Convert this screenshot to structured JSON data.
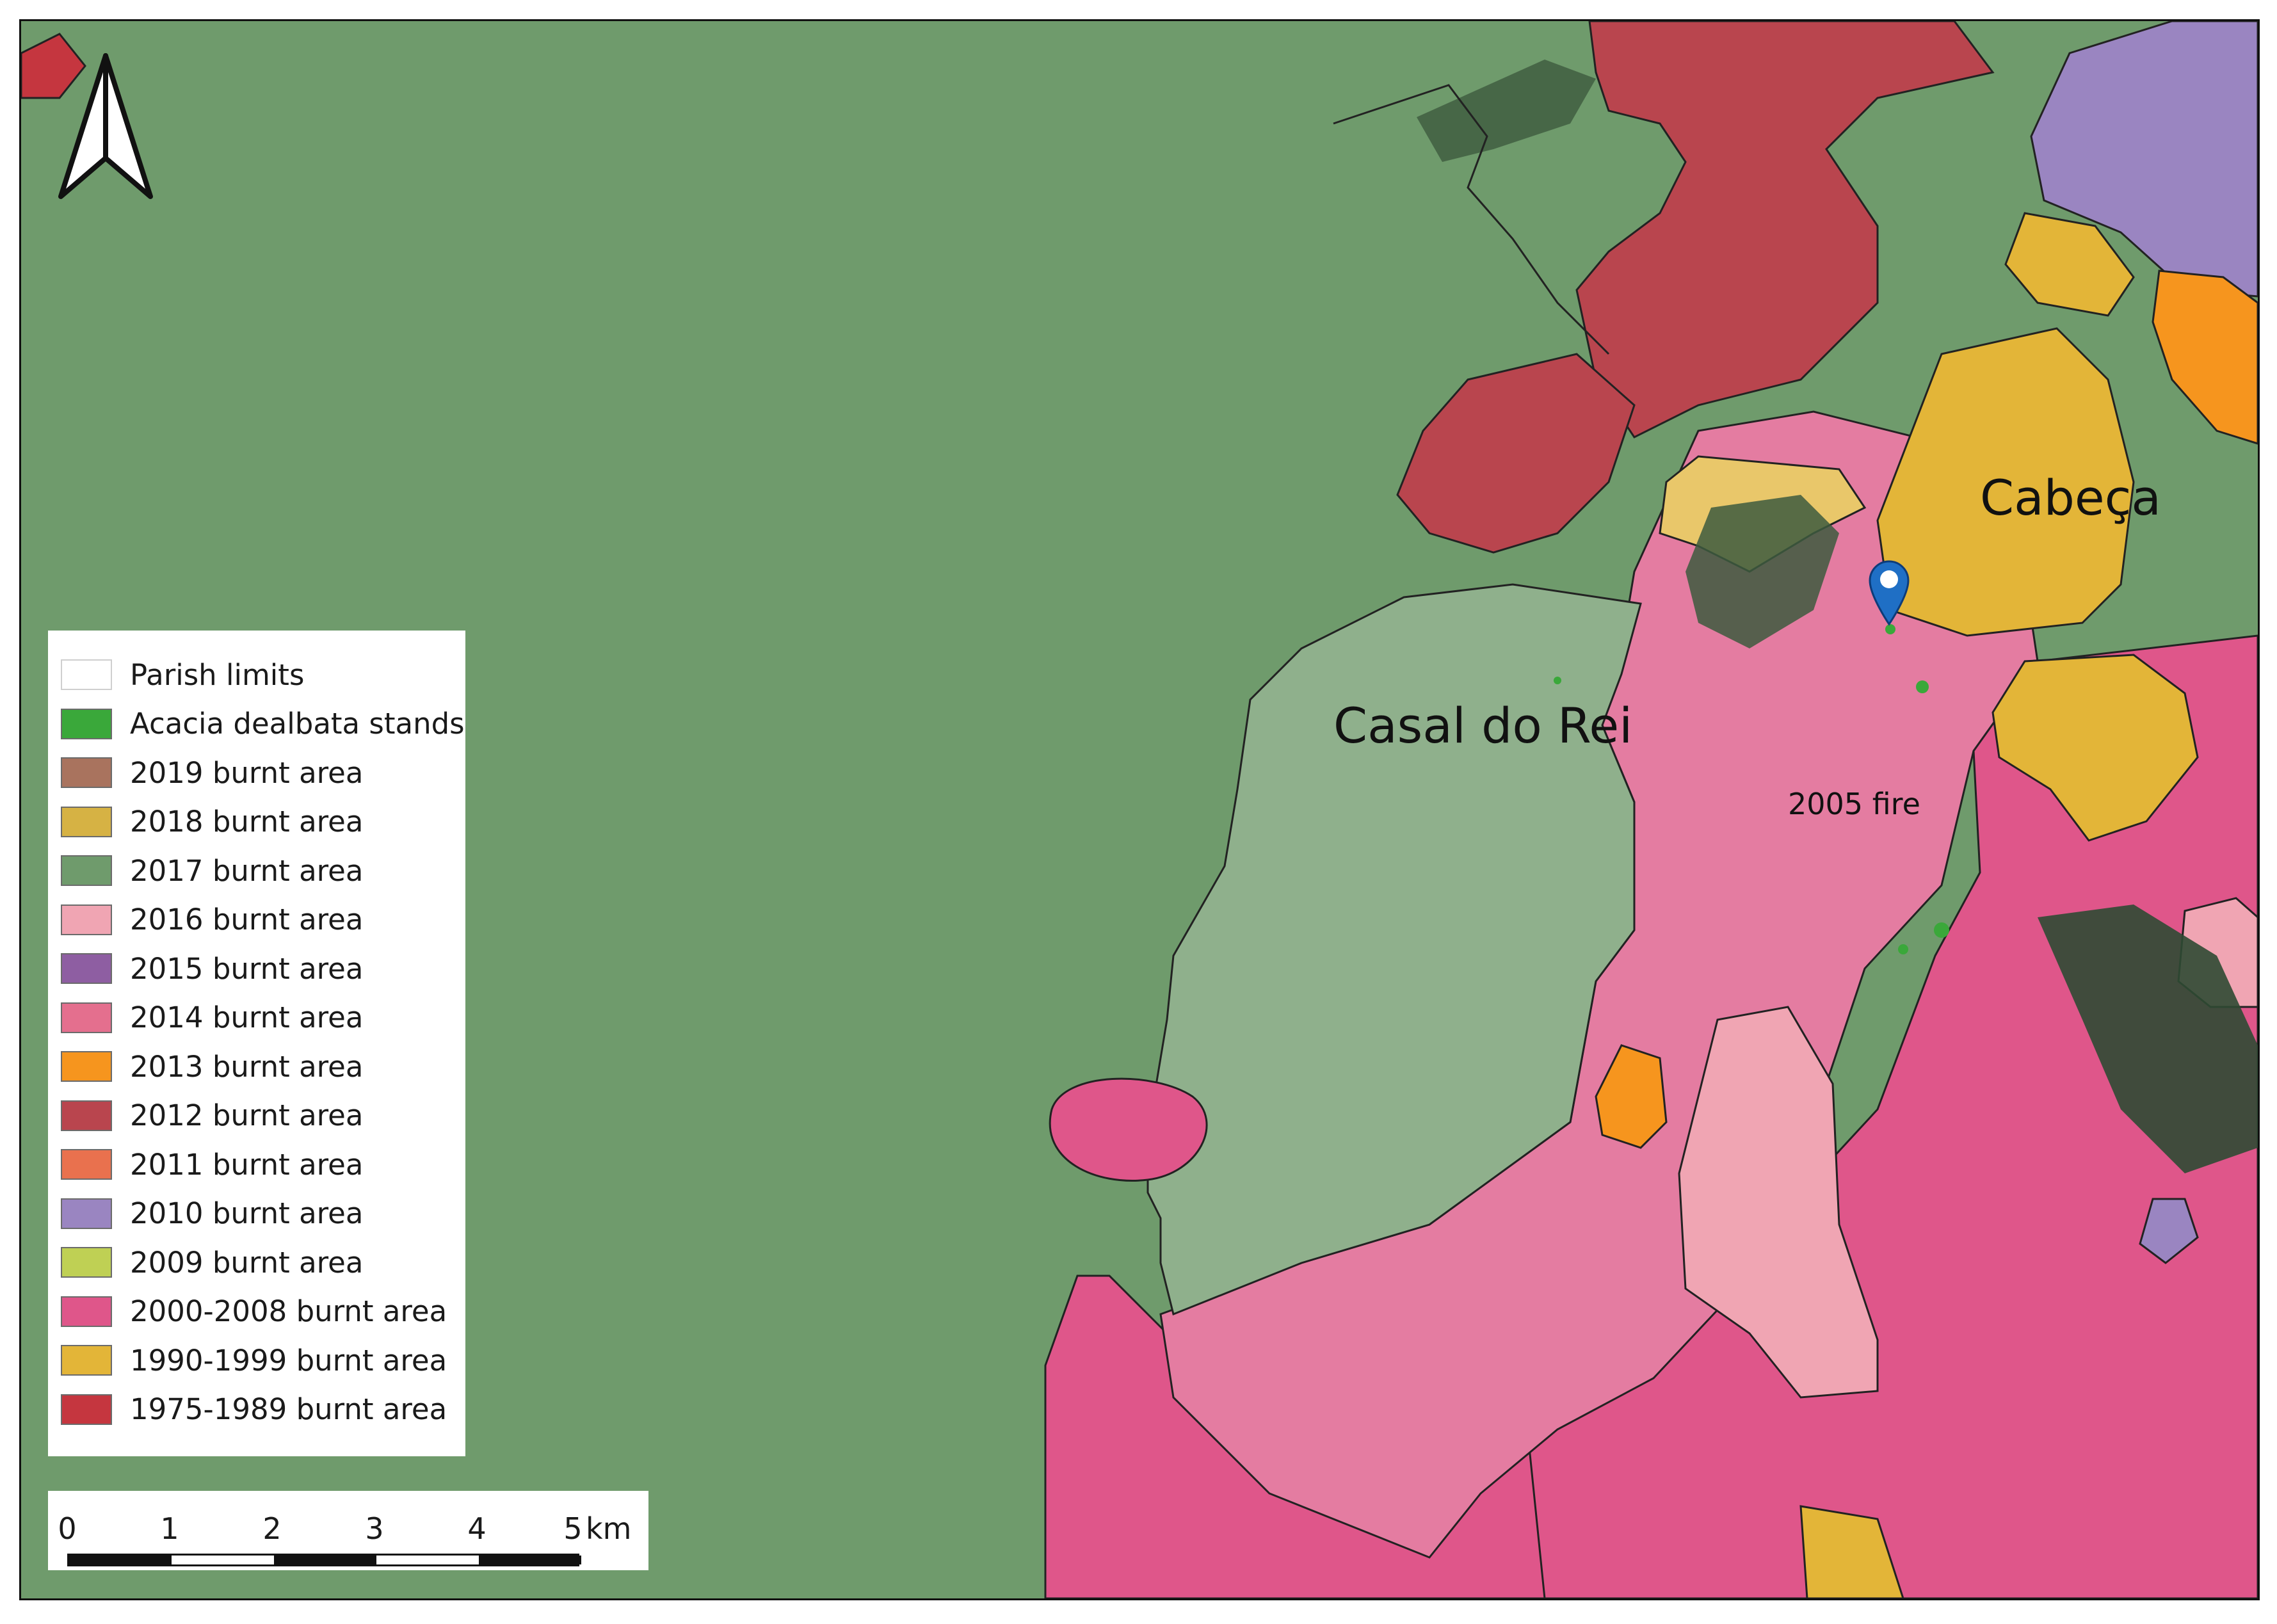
{
  "map": {
    "places": {
      "casal_do_rei": "Casal do Rei",
      "cabeca": "Cabeça",
      "fire_2005": "2005 fire"
    },
    "north_arrow": "north-arrow-icon",
    "marker": "location-pin-icon",
    "basemap_background_color": "#6f9b6c"
  },
  "legend": {
    "items": [
      {
        "label": "Parish limits",
        "color": "#ffffff"
      },
      {
        "label": "Acacia dealbata stands",
        "color": "#3aa83a"
      },
      {
        "label": "2019 burnt area",
        "color": "#a9735e"
      },
      {
        "label": "2018 burnt area",
        "color": "#d6b244"
      },
      {
        "label": "2017 burnt area",
        "color": "#6f9b6c"
      },
      {
        "label": "2016 burnt area",
        "color": "#f0a5b3"
      },
      {
        "label": "2015 burnt area",
        "color": "#8e5ea2"
      },
      {
        "label": "2014 burnt area",
        "color": "#e46f8e"
      },
      {
        "label": "2013 burnt area",
        "color": "#f6951e"
      },
      {
        "label": "2012 burnt area",
        "color": "#b9454e"
      },
      {
        "label": "2011 burnt area",
        "color": "#e9714e"
      },
      {
        "label": "2010 burnt area",
        "color": "#9a85c1"
      },
      {
        "label": "2009 burnt area",
        "color": "#bfd054"
      },
      {
        "label": "2000-2008 burnt area",
        "color": "#df568a"
      },
      {
        "label": "1990-1999 burnt area",
        "color": "#e3b538"
      },
      {
        "label": "1975-1989 burnt area",
        "color": "#c5363f"
      }
    ]
  },
  "scalebar": {
    "ticks": [
      "0",
      "1",
      "2",
      "3",
      "4",
      "5"
    ],
    "unit": "km"
  }
}
